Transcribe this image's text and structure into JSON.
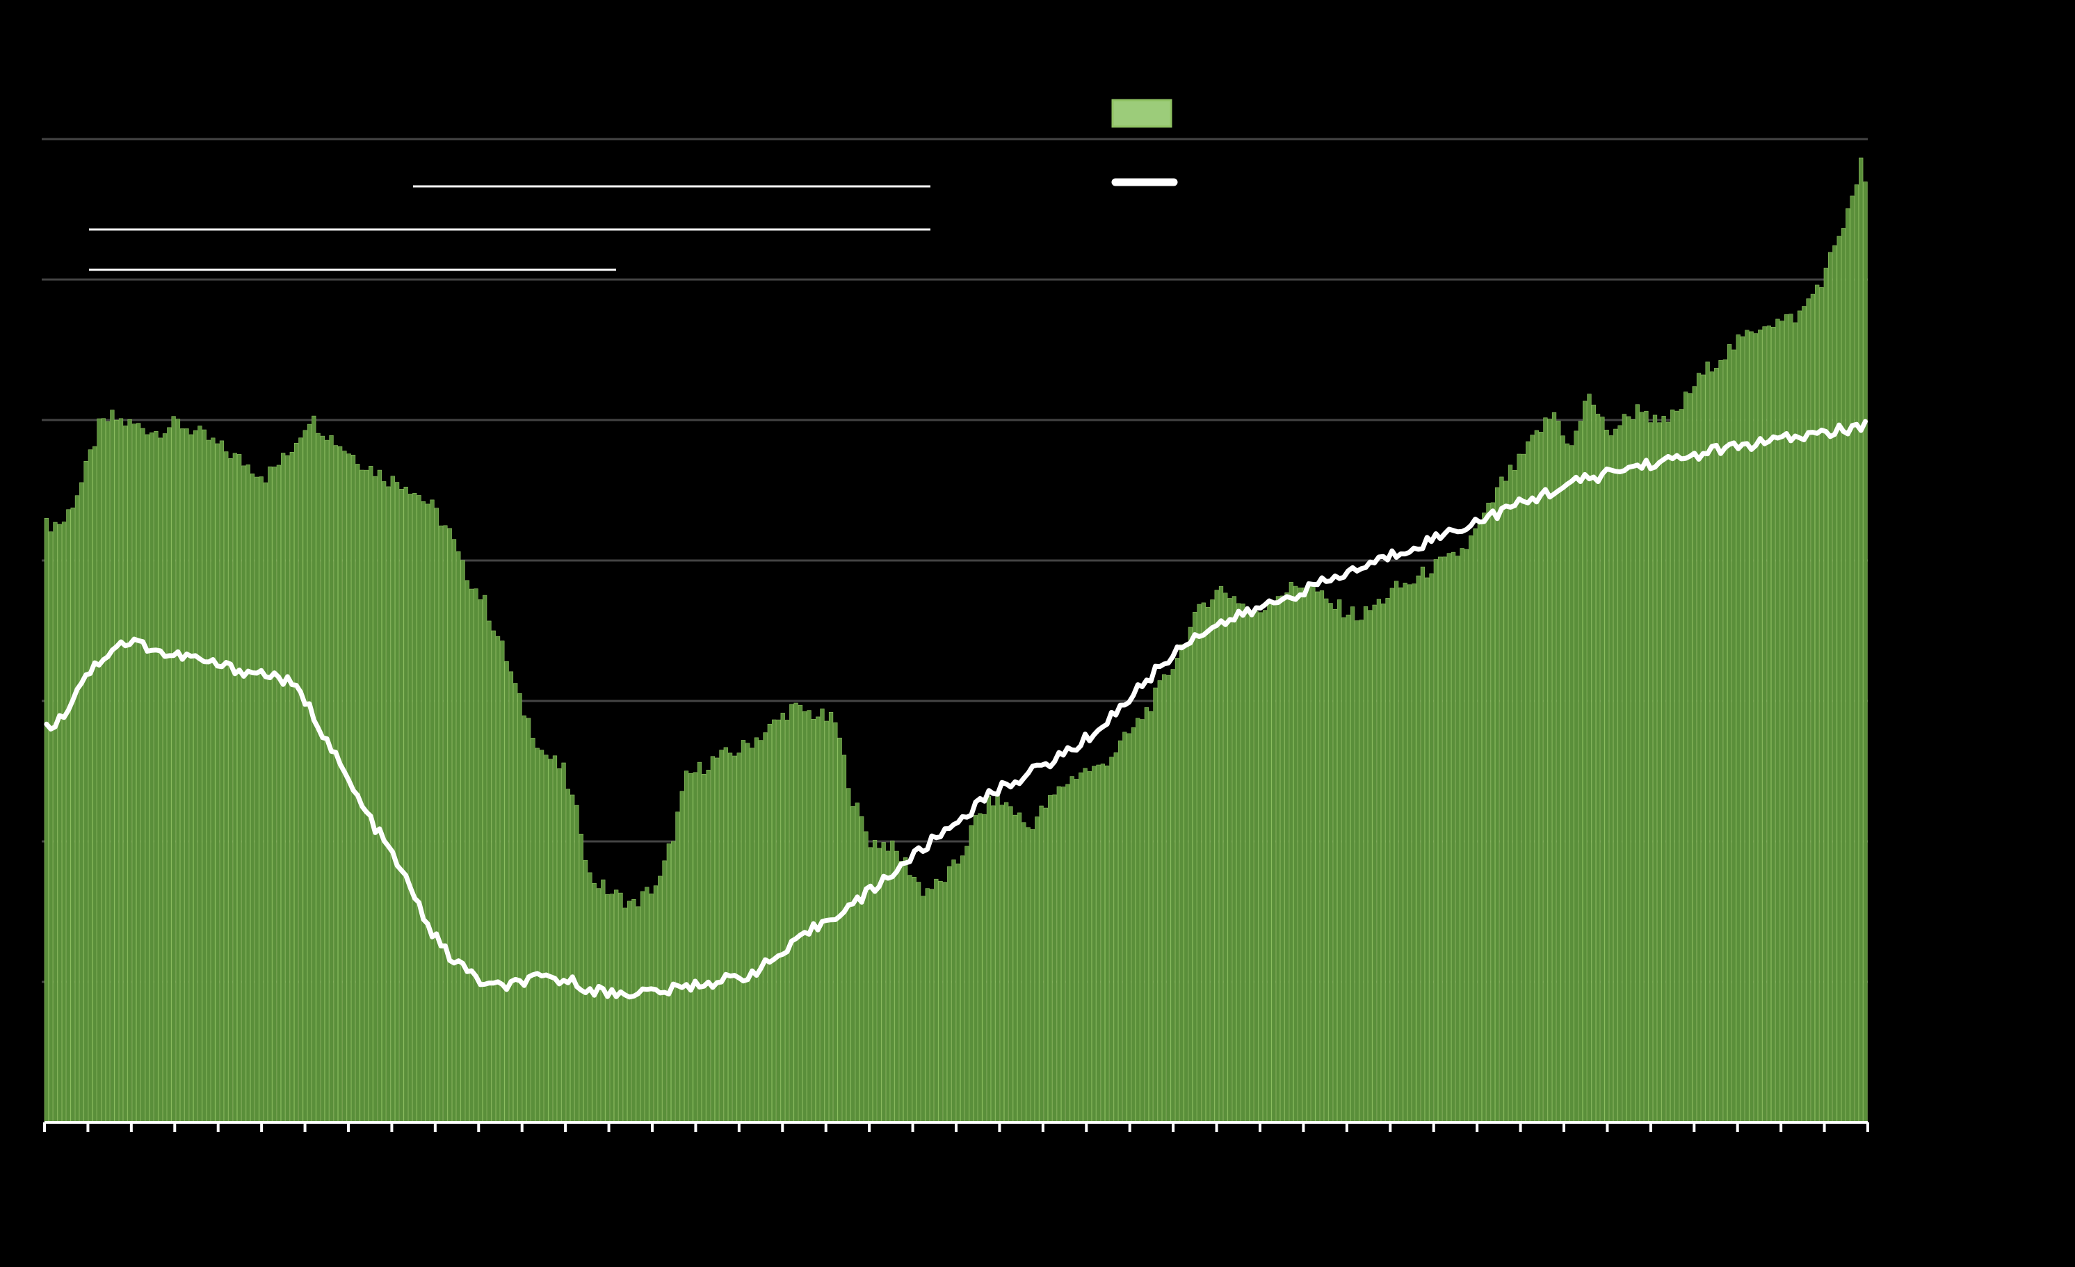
{
  "chart_data": {
    "type": "bar",
    "title": "",
    "xlabel": "",
    "ylabel": "",
    "ylim": [
      0,
      7
    ],
    "grid": true,
    "legend_position": "top-right",
    "bar_color": "#5a8f3a",
    "bar_edge_color": "#8fc263",
    "line_color": "#ffffff",
    "legend_swatch_color": "#9ccc7a",
    "n_points": 416,
    "x_tick_count": 42,
    "series": [
      {
        "type": "bar",
        "anchors": [
          [
            0,
            4.25
          ],
          [
            4,
            4.28
          ],
          [
            8,
            4.55
          ],
          [
            12,
            4.95
          ],
          [
            15,
            5.02
          ],
          [
            18,
            4.98
          ],
          [
            22,
            4.95
          ],
          [
            25,
            4.92
          ],
          [
            30,
            4.98
          ],
          [
            35,
            4.9
          ],
          [
            40,
            4.8
          ],
          [
            45,
            4.7
          ],
          [
            50,
            4.6
          ],
          [
            55,
            4.75
          ],
          [
            60,
            5.02
          ],
          [
            66,
            4.85
          ],
          [
            72,
            4.7
          ],
          [
            78,
            4.58
          ],
          [
            82,
            4.55
          ],
          [
            88,
            4.38
          ],
          [
            92,
            4.2
          ],
          [
            95,
            3.95
          ],
          [
            100,
            3.7
          ],
          [
            105,
            3.3
          ],
          [
            108,
            3.0
          ],
          [
            113,
            2.65
          ],
          [
            118,
            2.5
          ],
          [
            122,
            2.1
          ],
          [
            124,
            1.75
          ],
          [
            128,
            1.65
          ],
          [
            134,
            1.55
          ],
          [
            140,
            1.72
          ],
          [
            143,
            2.05
          ],
          [
            146,
            2.45
          ],
          [
            152,
            2.58
          ],
          [
            158,
            2.65
          ],
          [
            164,
            2.78
          ],
          [
            170,
            2.95
          ],
          [
            176,
            2.9
          ],
          [
            180,
            2.85
          ],
          [
            184,
            2.3
          ],
          [
            188,
            2.0
          ],
          [
            192,
            1.98
          ],
          [
            196,
            1.85
          ],
          [
            200,
            1.65
          ],
          [
            204,
            1.7
          ],
          [
            208,
            1.85
          ],
          [
            212,
            2.15
          ],
          [
            216,
            2.3
          ],
          [
            220,
            2.25
          ],
          [
            224,
            2.1
          ],
          [
            228,
            2.25
          ],
          [
            232,
            2.4
          ],
          [
            236,
            2.5
          ],
          [
            240,
            2.52
          ],
          [
            244,
            2.65
          ],
          [
            248,
            2.8
          ],
          [
            252,
            2.98
          ],
          [
            256,
            3.2
          ],
          [
            260,
            3.45
          ],
          [
            264,
            3.7
          ],
          [
            268,
            3.8
          ],
          [
            272,
            3.72
          ],
          [
            276,
            3.6
          ],
          [
            280,
            3.75
          ],
          [
            284,
            3.8
          ],
          [
            288,
            3.85
          ],
          [
            292,
            3.7
          ],
          [
            296,
            3.65
          ],
          [
            300,
            3.6
          ],
          [
            304,
            3.7
          ],
          [
            308,
            3.8
          ],
          [
            312,
            3.85
          ],
          [
            316,
            3.95
          ],
          [
            320,
            4.0
          ],
          [
            324,
            4.1
          ],
          [
            328,
            4.3
          ],
          [
            332,
            4.55
          ],
          [
            336,
            4.7
          ],
          [
            340,
            4.9
          ],
          [
            344,
            5.05
          ],
          [
            348,
            4.8
          ],
          [
            352,
            5.2
          ],
          [
            356,
            4.9
          ],
          [
            360,
            5.0
          ],
          [
            364,
            5.1
          ],
          [
            368,
            4.95
          ],
          [
            372,
            5.05
          ],
          [
            376,
            5.25
          ],
          [
            380,
            5.4
          ],
          [
            384,
            5.5
          ],
          [
            388,
            5.6
          ],
          [
            392,
            5.7
          ],
          [
            396,
            5.7
          ],
          [
            400,
            5.75
          ],
          [
            404,
            5.95
          ],
          [
            406,
            6.05
          ],
          [
            408,
            6.25
          ],
          [
            410,
            6.4
          ],
          [
            412,
            6.55
          ],
          [
            414,
            6.85
          ],
          [
            415,
            6.65
          ]
        ]
      },
      {
        "type": "line",
        "anchors": [
          [
            0,
            2.8
          ],
          [
            4,
            2.9
          ],
          [
            8,
            3.15
          ],
          [
            12,
            3.28
          ],
          [
            16,
            3.4
          ],
          [
            20,
            3.42
          ],
          [
            24,
            3.38
          ],
          [
            28,
            3.32
          ],
          [
            32,
            3.32
          ],
          [
            36,
            3.28
          ],
          [
            40,
            3.25
          ],
          [
            44,
            3.22
          ],
          [
            48,
            3.2
          ],
          [
            52,
            3.18
          ],
          [
            56,
            3.12
          ],
          [
            60,
            2.95
          ],
          [
            64,
            2.72
          ],
          [
            68,
            2.48
          ],
          [
            72,
            2.25
          ],
          [
            76,
            2.05
          ],
          [
            80,
            1.85
          ],
          [
            84,
            1.6
          ],
          [
            88,
            1.35
          ],
          [
            92,
            1.18
          ],
          [
            96,
            1.08
          ],
          [
            100,
            0.98
          ],
          [
            104,
            0.96
          ],
          [
            108,
            1.0
          ],
          [
            112,
            1.02
          ],
          [
            116,
            1.02
          ],
          [
            120,
            1.0
          ],
          [
            124,
            0.95
          ],
          [
            128,
            0.92
          ],
          [
            132,
            0.92
          ],
          [
            136,
            0.93
          ],
          [
            140,
            0.93
          ],
          [
            144,
            0.95
          ],
          [
            148,
            0.98
          ],
          [
            152,
            1.0
          ],
          [
            156,
            1.02
          ],
          [
            160,
            1.05
          ],
          [
            164,
            1.12
          ],
          [
            168,
            1.2
          ],
          [
            172,
            1.3
          ],
          [
            176,
            1.4
          ],
          [
            180,
            1.48
          ],
          [
            184,
            1.55
          ],
          [
            188,
            1.65
          ],
          [
            192,
            1.75
          ],
          [
            196,
            1.85
          ],
          [
            200,
            1.95
          ],
          [
            204,
            2.05
          ],
          [
            208,
            2.15
          ],
          [
            212,
            2.25
          ],
          [
            216,
            2.35
          ],
          [
            220,
            2.42
          ],
          [
            224,
            2.48
          ],
          [
            228,
            2.55
          ],
          [
            232,
            2.62
          ],
          [
            236,
            2.7
          ],
          [
            240,
            2.8
          ],
          [
            244,
            2.92
          ],
          [
            248,
            3.05
          ],
          [
            252,
            3.18
          ],
          [
            256,
            3.3
          ],
          [
            260,
            3.42
          ],
          [
            264,
            3.5
          ],
          [
            268,
            3.55
          ],
          [
            272,
            3.6
          ],
          [
            276,
            3.65
          ],
          [
            280,
            3.7
          ],
          [
            284,
            3.75
          ],
          [
            288,
            3.8
          ],
          [
            292,
            3.85
          ],
          [
            296,
            3.9
          ],
          [
            300,
            3.95
          ],
          [
            304,
            4.0
          ],
          [
            308,
            4.05
          ],
          [
            312,
            4.1
          ],
          [
            316,
            4.15
          ],
          [
            320,
            4.2
          ],
          [
            324,
            4.25
          ],
          [
            328,
            4.3
          ],
          [
            332,
            4.35
          ],
          [
            336,
            4.4
          ],
          [
            340,
            4.45
          ],
          [
            344,
            4.5
          ],
          [
            348,
            4.55
          ],
          [
            352,
            4.58
          ],
          [
            356,
            4.62
          ],
          [
            360,
            4.65
          ],
          [
            364,
            4.68
          ],
          [
            368,
            4.7
          ],
          [
            372,
            4.72
          ],
          [
            376,
            4.75
          ],
          [
            380,
            4.78
          ],
          [
            384,
            4.8
          ],
          [
            388,
            4.82
          ],
          [
            392,
            4.84
          ],
          [
            396,
            4.86
          ],
          [
            400,
            4.88
          ],
          [
            404,
            4.9
          ],
          [
            408,
            4.92
          ],
          [
            412,
            4.94
          ],
          [
            415,
            4.95
          ]
        ]
      }
    ]
  }
}
